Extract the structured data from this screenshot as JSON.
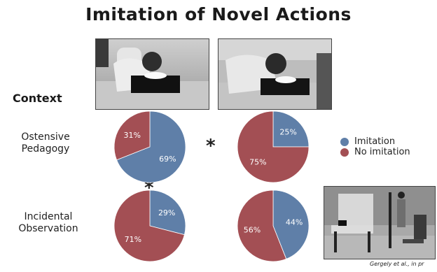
{
  "slide": {
    "title": "Imitation of Novel Actions",
    "context_label": "Context",
    "row_labels": [
      "Ostensive\nPedagogy",
      "Incidental\nObservation"
    ],
    "star_symbol": "*",
    "citation": "Gergely et al., in pr"
  },
  "legend": {
    "items": [
      {
        "label": "Imitation",
        "color": "#5f7fa8"
      },
      {
        "label": "No imitation",
        "color": "#a34f54"
      }
    ]
  },
  "colors": {
    "imitation": "#5f7fa8",
    "no_imitation": "#a34f54"
  },
  "chart_data": [
    {
      "type": "pie",
      "condition": "Ostensive Pedagogy",
      "categories": [
        "Imitation",
        "No imitation"
      ],
      "values": [
        69,
        31
      ],
      "labels": [
        "69%",
        "31%"
      ]
    },
    {
      "type": "pie",
      "condition": "Ostensive Pedagogy",
      "categories": [
        "Imitation",
        "No imitation"
      ],
      "values": [
        25,
        75
      ],
      "labels": [
        "25%",
        "75%"
      ]
    },
    {
      "type": "pie",
      "condition": "Incidental Observation",
      "categories": [
        "Imitation",
        "No imitation"
      ],
      "values": [
        29,
        71
      ],
      "labels": [
        "29%",
        "71%"
      ]
    },
    {
      "type": "pie",
      "condition": "Incidental Observation",
      "categories": [
        "Imitation",
        "No imitation"
      ],
      "values": [
        44,
        56
      ],
      "labels": [
        "44%",
        "56%"
      ]
    }
  ]
}
